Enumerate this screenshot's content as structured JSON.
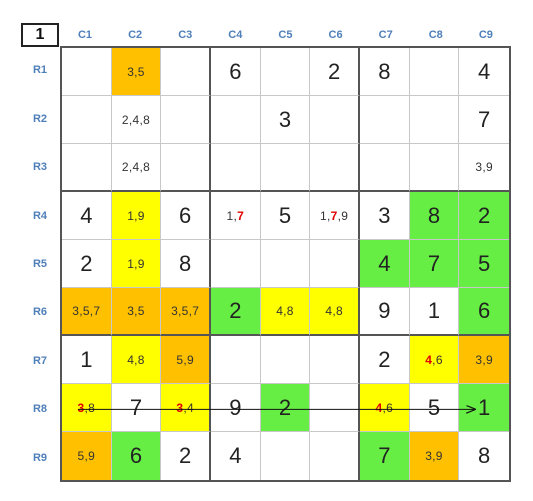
{
  "corner_label": "1",
  "col_labels": [
    "C1",
    "C2",
    "C3",
    "C4",
    "C5",
    "C6",
    "C7",
    "C8",
    "C9"
  ],
  "row_labels": [
    "R1",
    "R2",
    "R3",
    "R4",
    "R5",
    "R6",
    "R7",
    "R8",
    "R9"
  ],
  "colors": {
    "orange": "#ffc000",
    "yellow": "#ffff00",
    "green": "#66ee44",
    "highlight_digit": "#e00000",
    "label_blue": "#4f7fb8"
  },
  "cells": [
    [
      {
        "t": "",
        "k": "e"
      },
      {
        "t": "3,5",
        "k": "c",
        "bg": "orange"
      },
      {
        "t": "",
        "k": "e"
      },
      {
        "t": "6",
        "k": "g"
      },
      {
        "t": "",
        "k": "e"
      },
      {
        "t": "2",
        "k": "g"
      },
      {
        "t": "8",
        "k": "g"
      },
      {
        "t": "",
        "k": "e"
      },
      {
        "t": "4",
        "k": "g"
      }
    ],
    [
      {
        "t": "",
        "k": "e"
      },
      {
        "t": "2,4,8",
        "k": "c"
      },
      {
        "t": "",
        "k": "e"
      },
      {
        "t": "",
        "k": "e"
      },
      {
        "t": "3",
        "k": "g"
      },
      {
        "t": "",
        "k": "e"
      },
      {
        "t": "",
        "k": "e"
      },
      {
        "t": "",
        "k": "e"
      },
      {
        "t": "7",
        "k": "g"
      }
    ],
    [
      {
        "t": "",
        "k": "e"
      },
      {
        "t": "2,4,8",
        "k": "c"
      },
      {
        "t": "",
        "k": "e"
      },
      {
        "t": "",
        "k": "e"
      },
      {
        "t": "",
        "k": "e"
      },
      {
        "t": "",
        "k": "e"
      },
      {
        "t": "",
        "k": "e"
      },
      {
        "t": "",
        "k": "e"
      },
      {
        "t": "3,9",
        "k": "c"
      }
    ],
    [
      {
        "t": "4",
        "k": "g"
      },
      {
        "t": "1,9",
        "k": "c",
        "bg": "yellow"
      },
      {
        "t": "6",
        "k": "g"
      },
      {
        "t": "1,7",
        "k": "c",
        "hl": [
          "7"
        ]
      },
      {
        "t": "5",
        "k": "g"
      },
      {
        "t": "1,7,9",
        "k": "c",
        "hl": [
          "7"
        ]
      },
      {
        "t": "3",
        "k": "g"
      },
      {
        "t": "8",
        "k": "g",
        "bg": "green"
      },
      {
        "t": "2",
        "k": "g",
        "bg": "green"
      }
    ],
    [
      {
        "t": "2",
        "k": "g"
      },
      {
        "t": "1,9",
        "k": "c",
        "bg": "yellow"
      },
      {
        "t": "8",
        "k": "g"
      },
      {
        "t": "",
        "k": "e"
      },
      {
        "t": "",
        "k": "e"
      },
      {
        "t": "",
        "k": "e"
      },
      {
        "t": "4",
        "k": "g",
        "bg": "green"
      },
      {
        "t": "7",
        "k": "g",
        "bg": "green"
      },
      {
        "t": "5",
        "k": "g",
        "bg": "green"
      }
    ],
    [
      {
        "t": "3,5,7",
        "k": "c",
        "bg": "orange"
      },
      {
        "t": "3,5",
        "k": "c",
        "bg": "orange"
      },
      {
        "t": "3,5,7",
        "k": "c",
        "bg": "orange"
      },
      {
        "t": "2",
        "k": "g",
        "bg": "green"
      },
      {
        "t": "4,8",
        "k": "c",
        "bg": "yellow"
      },
      {
        "t": "4,8",
        "k": "c",
        "bg": "yellow"
      },
      {
        "t": "9",
        "k": "g"
      },
      {
        "t": "1",
        "k": "g"
      },
      {
        "t": "6",
        "k": "g",
        "bg": "green"
      }
    ],
    [
      {
        "t": "1",
        "k": "g"
      },
      {
        "t": "4,8",
        "k": "c",
        "bg": "yellow"
      },
      {
        "t": "5,9",
        "k": "c",
        "bg": "orange"
      },
      {
        "t": "",
        "k": "e"
      },
      {
        "t": "",
        "k": "e"
      },
      {
        "t": "",
        "k": "e"
      },
      {
        "t": "2",
        "k": "g"
      },
      {
        "t": "4,6",
        "k": "c",
        "bg": "yellow",
        "hl": [
          "4"
        ]
      },
      {
        "t": "3,9",
        "k": "c",
        "bg": "orange"
      }
    ],
    [
      {
        "t": "3,8",
        "k": "c",
        "bg": "yellow",
        "hl": [
          "3"
        ]
      },
      {
        "t": "7",
        "k": "g"
      },
      {
        "t": "3,4",
        "k": "c",
        "bg": "yellow",
        "hl": [
          "3"
        ]
      },
      {
        "t": "9",
        "k": "g"
      },
      {
        "t": "2",
        "k": "g",
        "bg": "green"
      },
      {
        "t": "",
        "k": "e"
      },
      {
        "t": "4,6",
        "k": "c",
        "bg": "yellow",
        "hl": [
          "4"
        ]
      },
      {
        "t": "5",
        "k": "g"
      },
      {
        "t": "1",
        "k": "g",
        "bg": "green"
      }
    ],
    [
      {
        "t": "5,9",
        "k": "c",
        "bg": "orange"
      },
      {
        "t": "6",
        "k": "g",
        "bg": "green"
      },
      {
        "t": "2",
        "k": "g"
      },
      {
        "t": "4",
        "k": "g"
      },
      {
        "t": "",
        "k": "e"
      },
      {
        "t": "",
        "k": "e"
      },
      {
        "t": "7",
        "k": "g",
        "bg": "green"
      },
      {
        "t": "3,9",
        "k": "c",
        "bg": "orange"
      },
      {
        "t": "8",
        "k": "g"
      }
    ]
  ],
  "links": [
    {
      "from": "R8C1",
      "to": "R8C9"
    }
  ]
}
